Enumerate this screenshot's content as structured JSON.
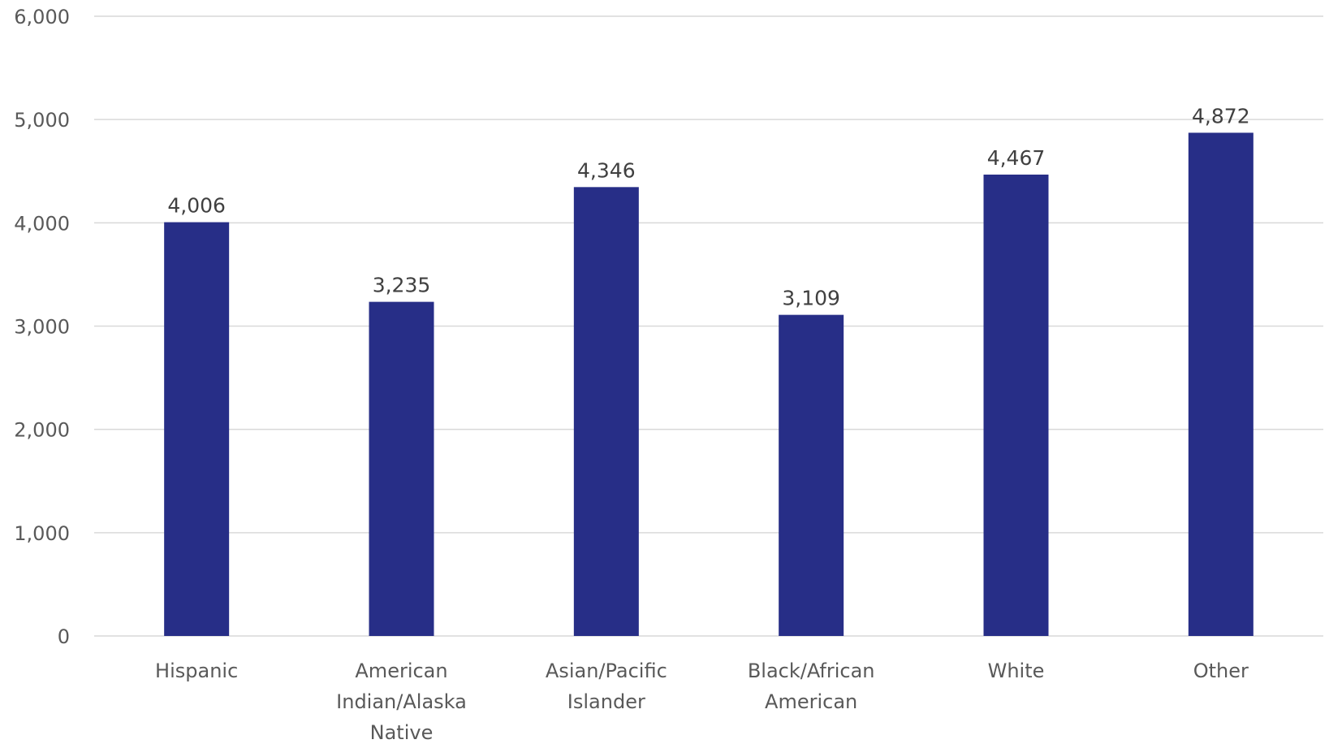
{
  "chart_data": {
    "type": "bar",
    "title": "",
    "xlabel": "",
    "ylabel": "",
    "categories": [
      [
        "Hispanic"
      ],
      [
        "American",
        "Indian/Alaska",
        "Native"
      ],
      [
        "Asian/Pacific",
        "Islander"
      ],
      [
        "Black/African",
        "American"
      ],
      [
        "White"
      ],
      [
        "Other"
      ]
    ],
    "values": [
      4006,
      3235,
      4346,
      3109,
      4467,
      4872
    ],
    "value_labels": [
      "4,006",
      "3,235",
      "4,346",
      "3,109",
      "4,467",
      "4,872"
    ],
    "ylim": [
      0,
      6000
    ],
    "yticks": [
      0,
      1000,
      2000,
      3000,
      4000,
      5000,
      6000
    ],
    "ytick_labels": [
      "0",
      "1,000",
      "2,000",
      "3,000",
      "4,000",
      "5,000",
      "6,000"
    ],
    "grid": true,
    "legend": "none",
    "bar_color": "#272e87"
  }
}
